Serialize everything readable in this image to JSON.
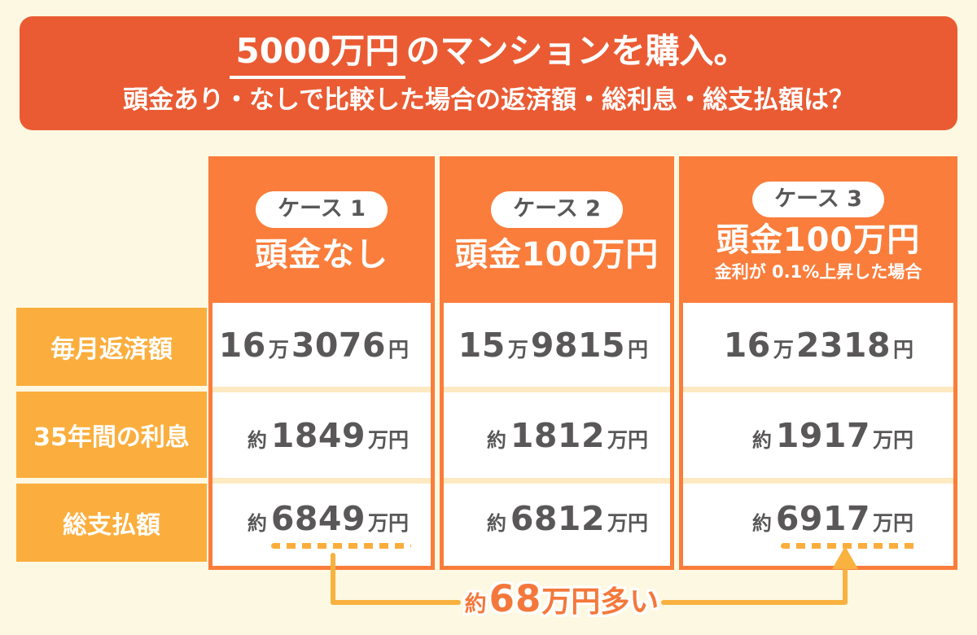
{
  "colors": {
    "background": "#FCF8E2",
    "banner": "#EA5B33",
    "case_header": "#FA7D3B",
    "row_label": "#FBAE3D",
    "value_text": "#595757",
    "annotation_text": "#F4783B",
    "connector": "#F9B13F",
    "dash_underline": "#FBAD3C",
    "separator": "#FDE9C2"
  },
  "banner": {
    "highlight": "5000万円",
    "title_rest": "のマンションを購入。",
    "subtitle": "頭金あり・なしで比較した場合の返済額・総利息・総支払額は？"
  },
  "cases": [
    {
      "badge": "ケース 1",
      "title": "頭金なし",
      "subtitle": ""
    },
    {
      "badge": "ケース 2",
      "title": "頭金100万円",
      "subtitle": ""
    },
    {
      "badge": "ケース 3",
      "title": "頭金100万円",
      "subtitle": "金利が 0.1%上昇した場合"
    }
  ],
  "row_labels": [
    "毎月返済額",
    "35年間の利息",
    "総支払額"
  ],
  "values": {
    "monthly": [
      {
        "n1": "16",
        "u1": "万",
        "n2": "3076",
        "u2": "円"
      },
      {
        "n1": "15",
        "u1": "万",
        "n2": "9815",
        "u2": "円"
      },
      {
        "n1": "16",
        "u1": "万",
        "n2": "2318",
        "u2": "円"
      }
    ],
    "interest": [
      {
        "p": "約",
        "n": "1849",
        "u": "万円"
      },
      {
        "p": "約",
        "n": "1812",
        "u": "万円"
      },
      {
        "p": "約",
        "n": "1917",
        "u": "万円"
      }
    ],
    "total": [
      {
        "p": "約",
        "n": "6849",
        "u": "万円"
      },
      {
        "p": "約",
        "n": "6812",
        "u": "万円"
      },
      {
        "p": "約",
        "n": "6917",
        "u": "万円"
      }
    ]
  },
  "annotation": {
    "approx": "約",
    "amount": "68",
    "rest": "万円多い"
  },
  "chart_data": {
    "type": "table",
    "title": "5000万円のマンションを購入。頭金あり・なしで比較した場合の返済額・総利息・総支払額は？",
    "columns": [
      "ケース 1：頭金なし",
      "ケース 2：頭金100万円",
      "ケース 3：頭金100万円（金利が 0.1%上昇した場合）"
    ],
    "row_labels": [
      "毎月返済額",
      "35年間の利息",
      "総支払額"
    ],
    "rows": [
      [
        "16万3076円",
        "15万9815円",
        "16万2318円"
      ],
      [
        "約1849万円",
        "約1812万円",
        "約1917万円"
      ],
      [
        "約6849万円",
        "約6812万円",
        "約6917万円"
      ]
    ],
    "annotation": "約68万円多い",
    "annotation_links": [
      "ケース 1 総支払額",
      "ケース 3 総支払額"
    ]
  }
}
